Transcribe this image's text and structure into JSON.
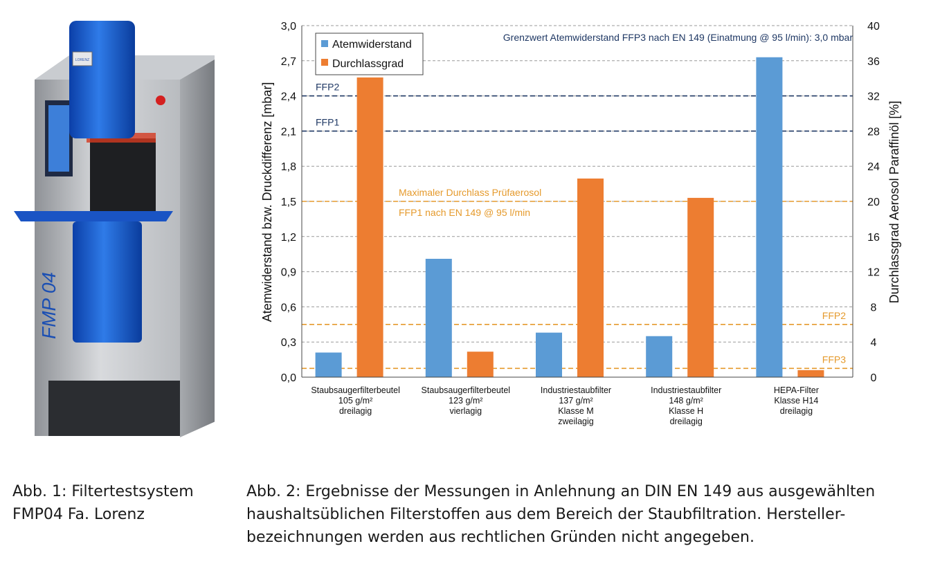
{
  "photo": {
    "machine_label": "FMP 04",
    "brand_plate": "LORENZ"
  },
  "captions": {
    "fig1": [
      "Abb. 1: Filtertestsystem",
      "FMP04 Fa. Lorenz"
    ],
    "fig2": [
      "Abb. 2: Ergebnisse der Messungen in Anlehnung an DIN EN 149 aus ausgewählten",
      "haushaltsüblichen Filterstoffen aus dem Bereich der Staubfiltration. Hersteller-",
      "bezeichnungen werden aus rechtlichen Gründen nicht angegeben."
    ]
  },
  "colors": {
    "blue": "#5b9bd5",
    "orange": "#ed7d31",
    "navy": "#1f3864",
    "orange_line": "#e59a2c",
    "grid": "#999999"
  },
  "chart_data": {
    "type": "bar",
    "categories": [
      [
        "Staubsaugerfilterbeutel",
        "105 g/m²",
        "dreilagig"
      ],
      [
        "Staubsaugerfilterbeutel",
        "123 g/m²",
        "vierlagig"
      ],
      [
        "Industriestaubfilter",
        "137 g/m²",
        "Klasse M",
        "zweilagig"
      ],
      [
        "Industriestaubfilter",
        "148 g/m²",
        "Klasse H",
        "dreilagig"
      ],
      [
        "HEPA-Filter",
        "Klasse H14",
        "dreilagig"
      ]
    ],
    "series": [
      {
        "name": "Atemwiderstand",
        "axis": "left",
        "color": "#5b9bd5",
        "values": [
          0.21,
          1.01,
          0.38,
          0.35,
          2.73
        ]
      },
      {
        "name": "Durchlassgrad",
        "axis": "right",
        "color": "#ed7d31",
        "values": [
          34.1,
          2.9,
          22.6,
          20.4,
          0.8
        ]
      }
    ],
    "ylabel_left": "Atemwiderstand bzw. Druckdifferenz [mbar]",
    "ylabel_right": "Durchlassgrad Aerosol Paraffinöl [%]",
    "ylim_left": [
      0,
      3
    ],
    "ylim_right": [
      0,
      40
    ],
    "yticks_left": [
      "0,0",
      "0,3",
      "0,6",
      "0,9",
      "1,2",
      "1,5",
      "1,8",
      "2,1",
      "2,4",
      "2,7",
      "3,0"
    ],
    "yticks_right": [
      "0",
      "4",
      "8",
      "12",
      "16",
      "20",
      "24",
      "28",
      "32",
      "36",
      "40"
    ],
    "grid": true,
    "legend_position": "top-left",
    "title_note": "Grenzwert Atemwiderstand FFP3 nach EN 149 (Einatmung @ 95 l/min): 3,0 mbar",
    "reference_lines": [
      {
        "label": "FFP2",
        "axis": "left",
        "value": 2.4,
        "color": "#1f3864",
        "label_side": "left"
      },
      {
        "label": "FFP1",
        "axis": "left",
        "value": 2.1,
        "color": "#1f3864",
        "label_side": "left"
      },
      {
        "label": "FFP2",
        "axis": "right",
        "value": 6,
        "color": "#e59a2c",
        "label_side": "right"
      },
      {
        "label": "FFP3",
        "axis": "right",
        "value": 1,
        "color": "#e59a2c",
        "label_side": "right"
      }
    ],
    "orange_annotation": {
      "axis": "right",
      "value": 20,
      "color": "#e59a2c",
      "lines": [
        "Maximaler Durchlass Prüfaerosol",
        "FFP1 nach EN 149 @ 95 l/min"
      ]
    }
  }
}
